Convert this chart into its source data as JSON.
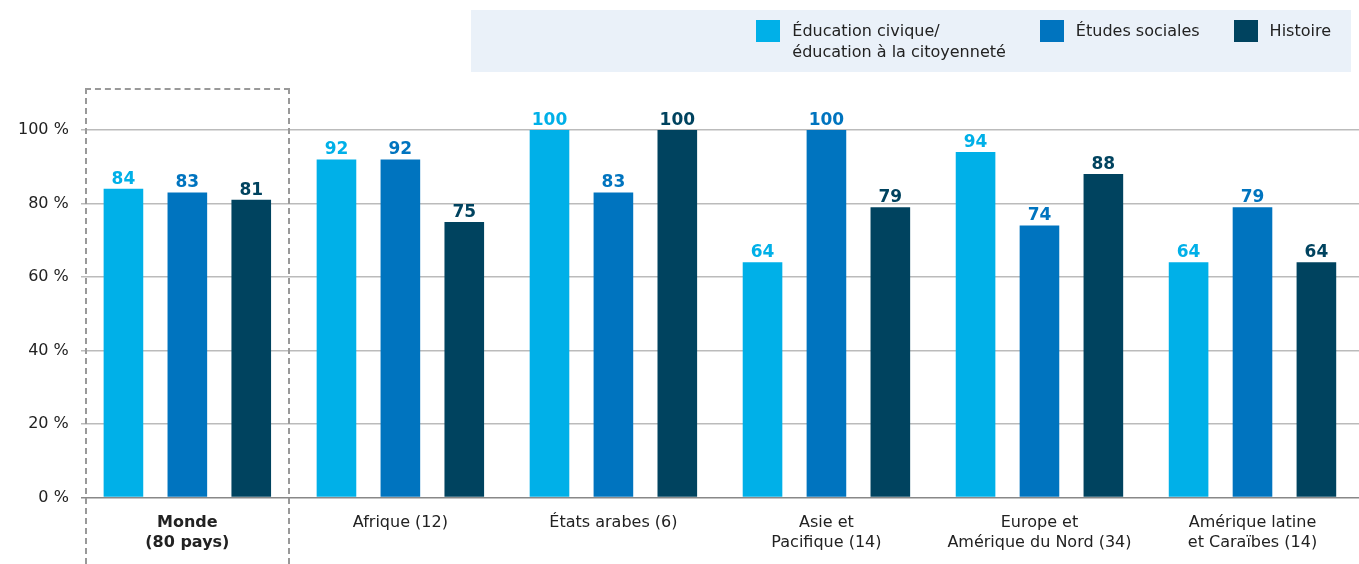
{
  "chart_data": {
    "type": "bar",
    "categories": [
      "Monde\n(80 pays)",
      "Afrique (12)",
      "États arabes (6)",
      "Asie et\nPacifique (14)",
      "Europe et\nAmérique du Nord (34)",
      "Amérique latine\net Caraïbes (14)"
    ],
    "series": [
      {
        "name": "Éducation civique/\néducation à la citoyenneté",
        "color": "#00b0e8",
        "values": [
          84,
          92,
          100,
          64,
          94,
          64
        ]
      },
      {
        "name": "Études sociales",
        "color": "#0074bf",
        "values": [
          83,
          92,
          83,
          100,
          74,
          79
        ]
      },
      {
        "name": "Histoire",
        "color": "#00435f",
        "values": [
          81,
          75,
          100,
          79,
          88,
          64
        ]
      }
    ],
    "ylim": [
      0,
      100
    ],
    "yticks": [
      {
        "value": 0,
        "label": "0 %"
      },
      {
        "value": 20,
        "label": "20 %"
      },
      {
        "value": 40,
        "label": "40 %"
      },
      {
        "value": 60,
        "label": "60 %"
      },
      {
        "value": 80,
        "label": "80 %"
      },
      {
        "value": 100,
        "label": "100 %"
      }
    ],
    "grid": "y",
    "legend": "top right",
    "data_labels": true
  }
}
